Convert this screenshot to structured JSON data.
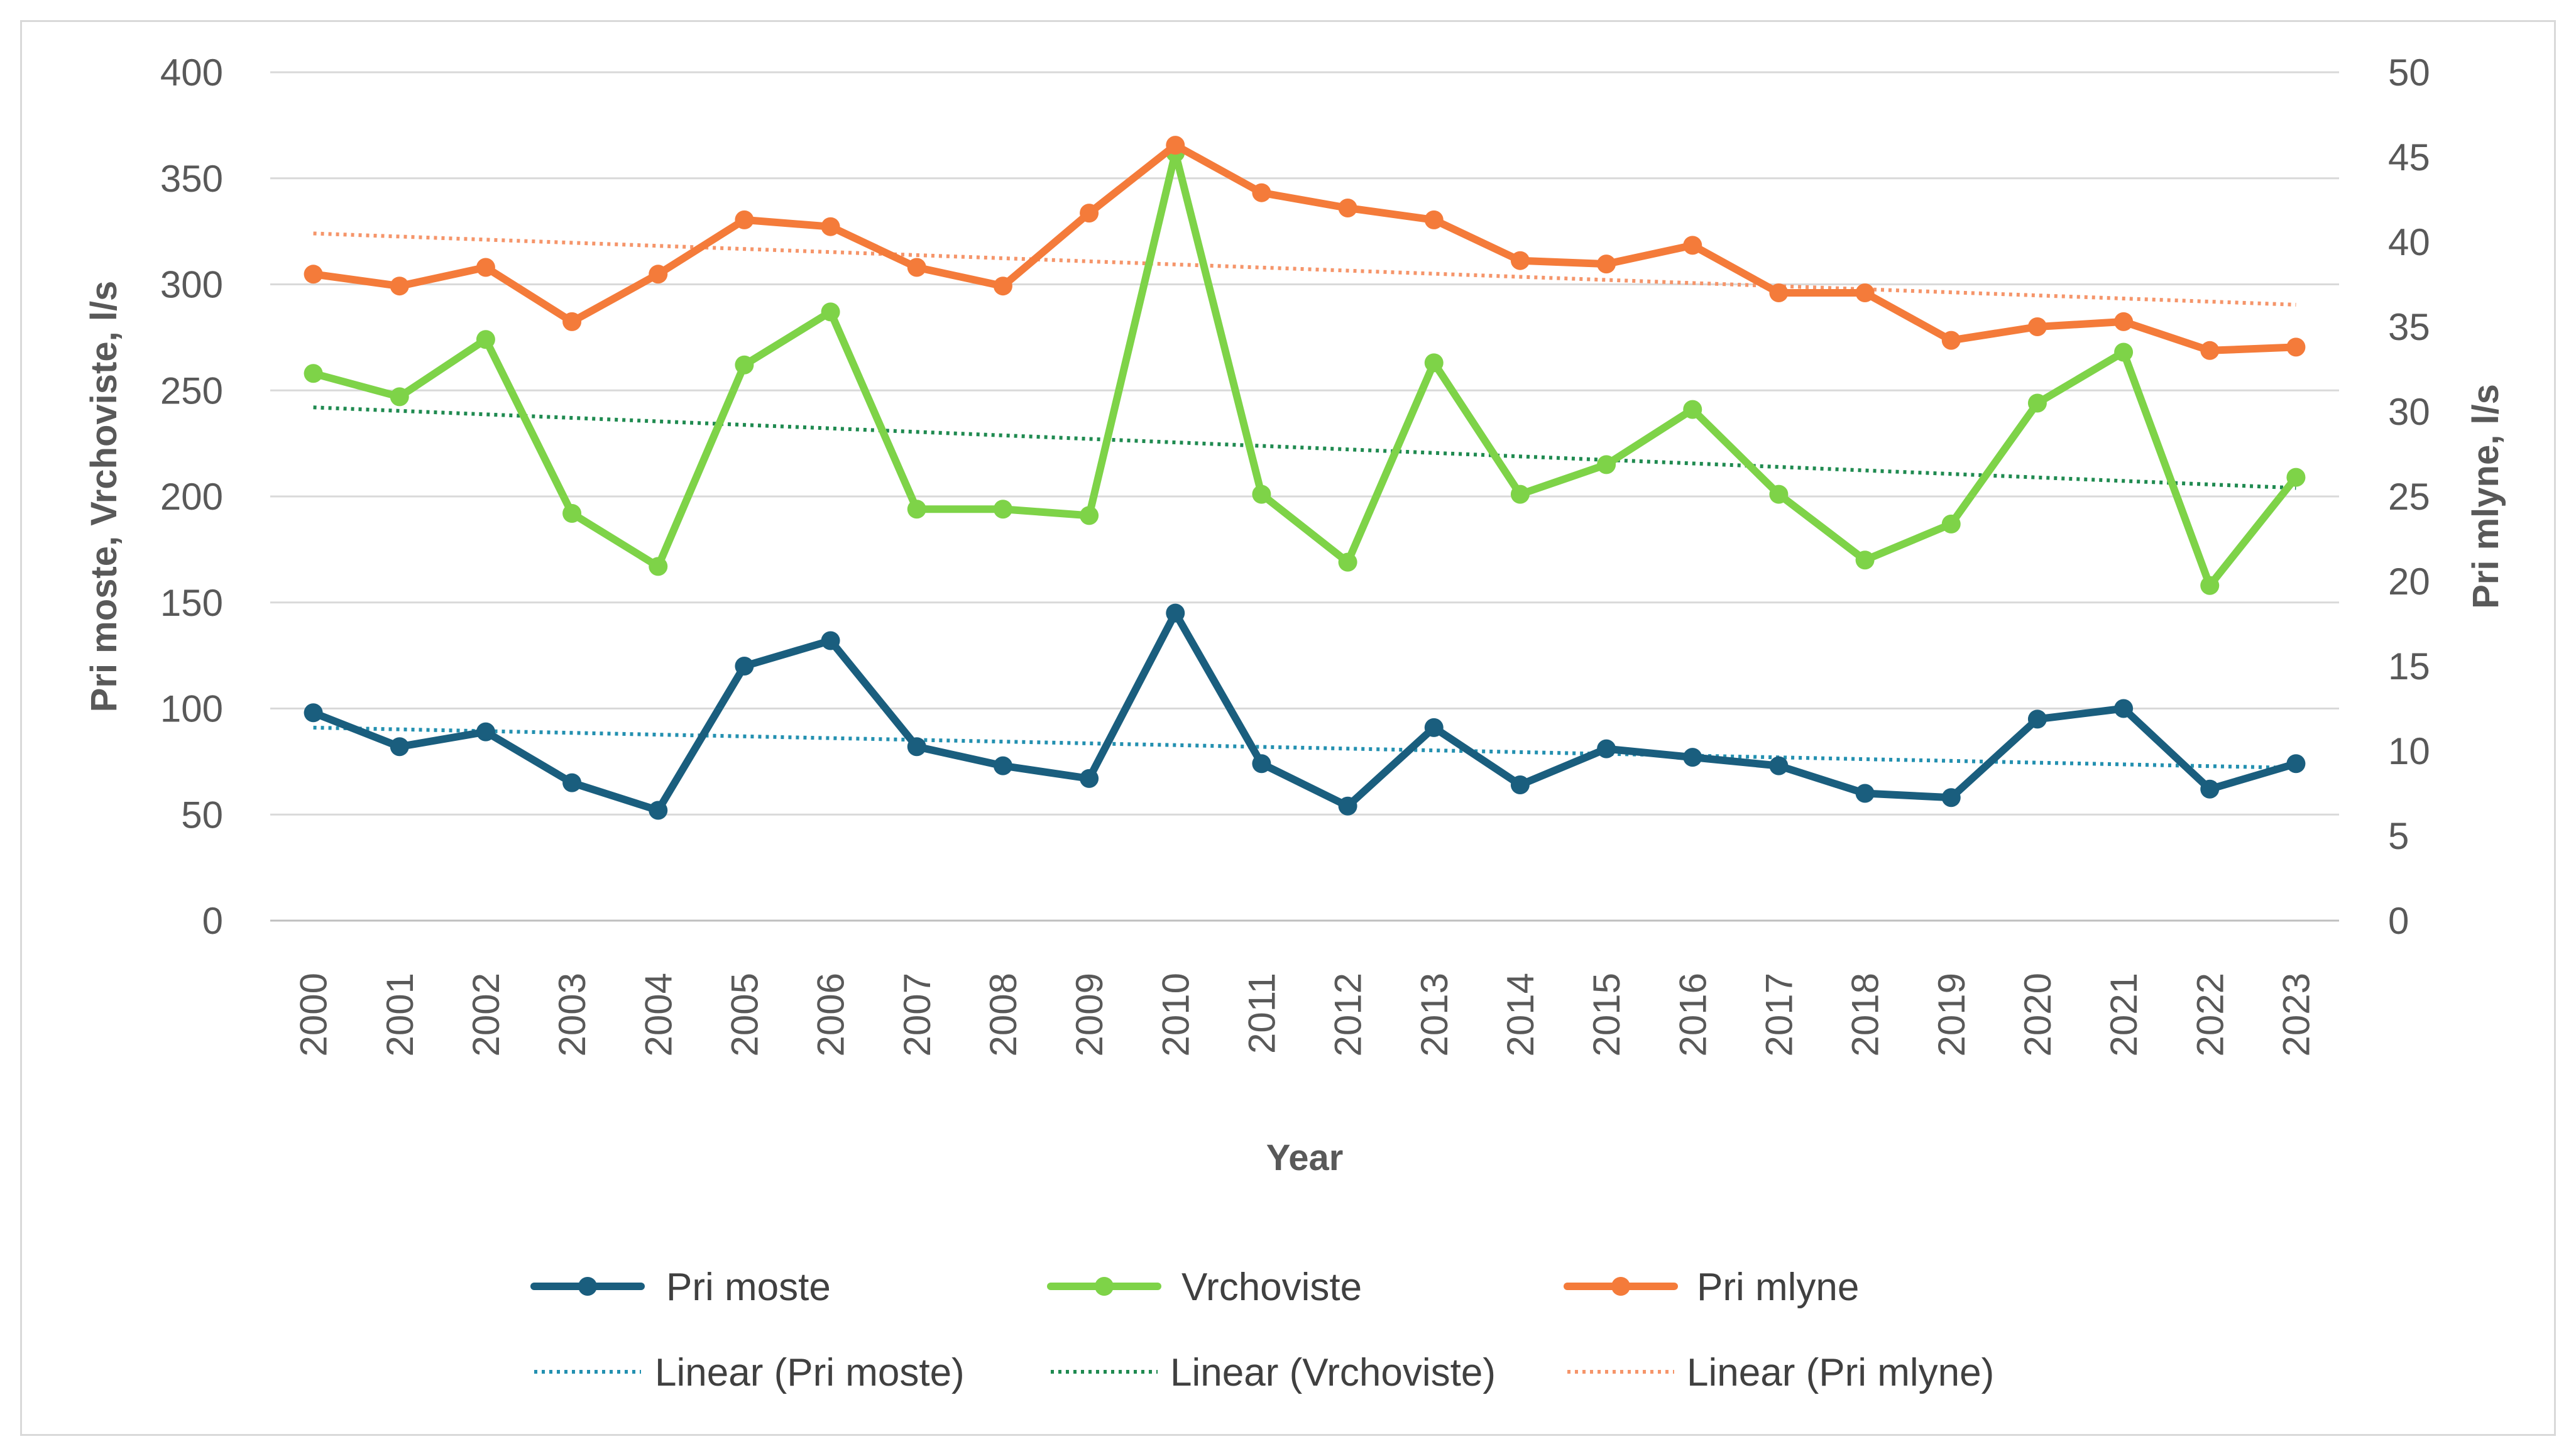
{
  "chart_data": {
    "type": "line",
    "title": "",
    "xlabel": "Year",
    "ylabel_left": "Pri moste, Vrchoviste, l/s",
    "ylabel_right": "Pri mlyne, l/s",
    "ylim_left": [
      0,
      400
    ],
    "ylim_right": [
      0,
      50
    ],
    "yticks_left": [
      "0",
      "50",
      "100",
      "150",
      "200",
      "250",
      "300",
      "350",
      "400"
    ],
    "yticks_right": [
      "0",
      "5",
      "10",
      "15",
      "20",
      "25",
      "30",
      "35",
      "40",
      "45",
      "50"
    ],
    "grid": "horizontal",
    "legend_position": "bottom",
    "categories": [
      "2000",
      "2001",
      "2002",
      "2003",
      "2004",
      "2005",
      "2006",
      "2007",
      "2008",
      "2009",
      "2010",
      "2011",
      "2012",
      "2013",
      "2014",
      "2015",
      "2016",
      "2017",
      "2018",
      "2019",
      "2020",
      "2021",
      "2022",
      "2023"
    ],
    "series": [
      {
        "name": "Pri moste",
        "axis": "left",
        "color": "#1a5e7e",
        "values": [
          98,
          82,
          89,
          65,
          52,
          120,
          132,
          82,
          73,
          67,
          145,
          74,
          54,
          91,
          64,
          81,
          77,
          73,
          60,
          58,
          95,
          100,
          62,
          74
        ]
      },
      {
        "name": "Vrchoviste",
        "axis": "left",
        "color": "#7ed348",
        "values": [
          258,
          247,
          274,
          192,
          167,
          262,
          287,
          194,
          194,
          191,
          362,
          201,
          169,
          263,
          201,
          215,
          241,
          201,
          170,
          187,
          244,
          268,
          158,
          209
        ]
      },
      {
        "name": "Pri mlyne",
        "axis": "right",
        "color": "#f47b3a",
        "values": [
          38.1,
          37.4,
          38.5,
          35.3,
          38.1,
          41.3,
          40.9,
          38.5,
          37.4,
          41.7,
          45.7,
          42.9,
          42.0,
          41.3,
          38.9,
          38.7,
          39.8,
          37.0,
          37.0,
          34.2,
          35.0,
          35.3,
          33.6,
          33.8
        ]
      }
    ],
    "trendlines": [
      {
        "name": "Linear (Pri moste)",
        "axis": "left",
        "color": "#2390b0",
        "start": 91,
        "end": 72
      },
      {
        "name": "Linear (Vrchoviste)",
        "axis": "left",
        "color": "#1f8a50",
        "start": 242,
        "end": 204
      },
      {
        "name": "Linear (Pri mlyne)",
        "axis": "right",
        "color": "#f5956a",
        "start": 40.5,
        "end": 36.3
      }
    ]
  }
}
